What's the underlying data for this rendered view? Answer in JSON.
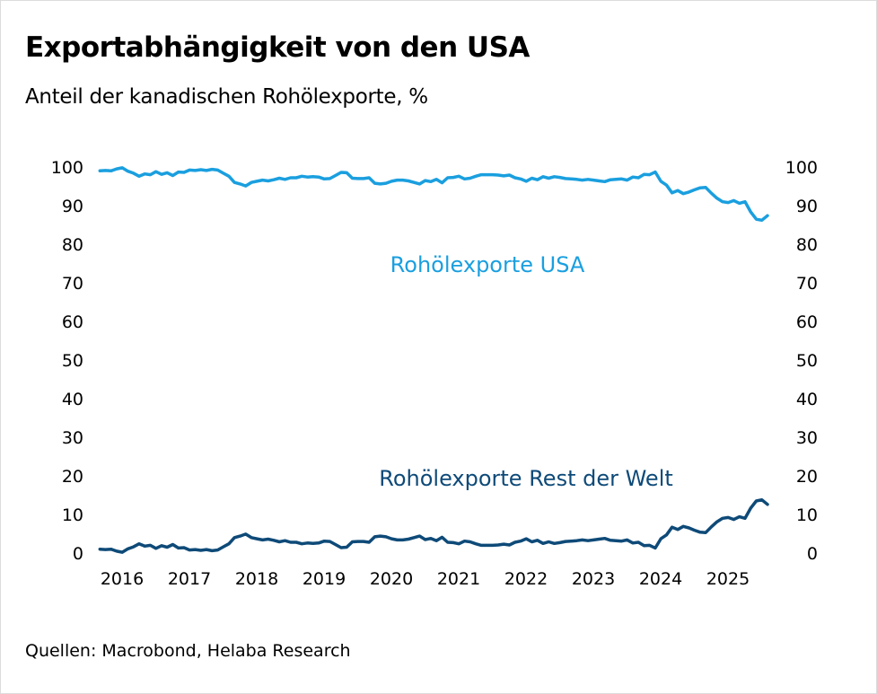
{
  "header": {
    "title": "Exportabhängigkeit von den USA",
    "subtitle": "Anteil der kanadischen Rohölexporte, %"
  },
  "footer": {
    "source": "Quellen: Macrobond, Helaba Research"
  },
  "chart_data": {
    "type": "line",
    "title": "Exportabhängigkeit von den USA",
    "subtitle": "Anteil der kanadischen Rohölexporte, %",
    "xlabel": "",
    "ylabel": "%",
    "ylim": [
      0,
      100
    ],
    "y_ticks": [
      "0",
      "10",
      "20",
      "30",
      "40",
      "50",
      "60",
      "70",
      "80",
      "90",
      "100"
    ],
    "x_ticks": [
      "2016",
      "2017",
      "2018",
      "2019",
      "2020",
      "2021",
      "2022",
      "2023",
      "2024",
      "2025"
    ],
    "x_start": 2016.17,
    "x_step_years": 0.08333,
    "grid": false,
    "legend": "inline annotations",
    "series": [
      {
        "name": "Rohölexporte USA",
        "color": "#1a9fdf",
        "label_position": "upper-middle",
        "values": [
          99.0,
          99.1,
          99.0,
          99.5,
          99.8,
          98.9,
          98.4,
          97.6,
          98.2,
          98.0,
          98.8,
          98.1,
          98.5,
          97.8,
          98.7,
          98.6,
          99.2,
          99.1,
          99.3,
          99.1,
          99.4,
          99.2,
          98.4,
          97.6,
          96.0,
          95.6,
          95.1,
          96.0,
          96.3,
          96.6,
          96.4,
          96.7,
          97.1,
          96.8,
          97.2,
          97.2,
          97.6,
          97.4,
          97.5,
          97.4,
          96.9,
          97.0,
          97.8,
          98.6,
          98.5,
          97.1,
          97.0,
          97.0,
          97.2,
          95.8,
          95.6,
          95.8,
          96.3,
          96.6,
          96.6,
          96.4,
          96.0,
          95.6,
          96.5,
          96.2,
          96.8,
          95.9,
          97.2,
          97.3,
          97.6,
          96.9,
          97.1,
          97.6,
          98.0,
          98.0,
          98.0,
          97.9,
          97.7,
          97.9,
          97.2,
          96.9,
          96.3,
          97.1,
          96.7,
          97.5,
          97.1,
          97.5,
          97.3,
          97.0,
          96.9,
          96.8,
          96.6,
          96.8,
          96.6,
          96.4,
          96.2,
          96.7,
          96.8,
          96.9,
          96.6,
          97.4,
          97.2,
          98.1,
          98.0,
          98.7,
          96.3,
          95.3,
          93.3,
          93.9,
          93.1,
          93.5,
          94.1,
          94.6,
          94.7,
          93.2,
          91.9,
          91.0,
          90.8,
          91.3,
          90.6,
          91.0,
          88.4,
          86.5,
          86.2,
          87.4
        ]
      },
      {
        "name": "Rohölexporte Rest der Welt",
        "color": "#0e4a78",
        "label_position": "lower-middle",
        "values": [
          1.0,
          0.9,
          1.0,
          0.5,
          0.2,
          1.1,
          1.6,
          2.4,
          1.8,
          2.0,
          1.2,
          1.9,
          1.5,
          2.2,
          1.3,
          1.4,
          0.8,
          0.9,
          0.7,
          0.9,
          0.6,
          0.8,
          1.6,
          2.4,
          4.0,
          4.4,
          4.9,
          4.0,
          3.7,
          3.4,
          3.6,
          3.3,
          2.9,
          3.2,
          2.8,
          2.8,
          2.4,
          2.6,
          2.5,
          2.6,
          3.1,
          3.0,
          2.2,
          1.4,
          1.5,
          2.9,
          3.0,
          3.0,
          2.8,
          4.2,
          4.4,
          4.2,
          3.7,
          3.4,
          3.4,
          3.6,
          4.0,
          4.4,
          3.5,
          3.8,
          3.2,
          4.1,
          2.8,
          2.7,
          2.4,
          3.1,
          2.9,
          2.4,
          2.0,
          2.0,
          2.0,
          2.1,
          2.3,
          2.1,
          2.8,
          3.1,
          3.7,
          2.9,
          3.3,
          2.5,
          2.9,
          2.5,
          2.7,
          3.0,
          3.1,
          3.2,
          3.4,
          3.2,
          3.4,
          3.6,
          3.8,
          3.3,
          3.2,
          3.1,
          3.4,
          2.6,
          2.8,
          1.9,
          2.0,
          1.3,
          3.7,
          4.7,
          6.7,
          6.1,
          6.9,
          6.5,
          5.9,
          5.4,
          5.3,
          6.8,
          8.1,
          9.0,
          9.2,
          8.7,
          9.4,
          9.0,
          11.6,
          13.5,
          13.8,
          12.6
        ]
      }
    ]
  }
}
